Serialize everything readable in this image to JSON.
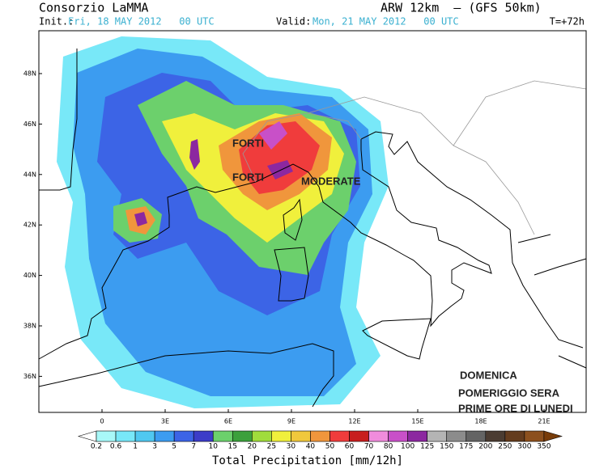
{
  "header": {
    "title": "Consorzio LaMMA",
    "model": "ARW 12km  — (GFS 50km)",
    "init_label": "Init.:",
    "init": "Fri, 18 MAY 2012   00 UTC",
    "valid_label": "Valid:",
    "valid": "Mon, 21 MAY 2012   00 UTC",
    "lead": "T=+72h"
  },
  "map": {
    "lat_labels": [
      "48N",
      "46N",
      "44N",
      "42N",
      "40N",
      "38N",
      "36N"
    ],
    "lon_labels": [
      "0",
      "3E",
      "6E",
      "9E",
      "12E",
      "15E",
      "18E",
      "21E"
    ],
    "annotations": [
      "FORTI",
      "FORTI",
      "MODERATE",
      "DOMENICA",
      "POMERIGGIO SERA",
      "PRIME ORE DI LUNEDI"
    ]
  },
  "colorbar": {
    "title": "Total Precipitation [mm/12h]",
    "levels": [
      0.2,
      0.6,
      1,
      3,
      5,
      7,
      10,
      15,
      20,
      25,
      30,
      40,
      50,
      60,
      70,
      80,
      100,
      125,
      150,
      175,
      200,
      250,
      300,
      350
    ],
    "colors": [
      "#ffffff",
      "#a8f8f8",
      "#78e8f8",
      "#50c8f0",
      "#3c9cf0",
      "#3c64e6",
      "#3c3cc8",
      "#6cd06c",
      "#3ca03c",
      "#a0dc3c",
      "#f0f03c",
      "#f0c83c",
      "#f0963c",
      "#f03c3c",
      "#c81e1e",
      "#f08cdc",
      "#c850c8",
      "#8c28a0",
      "#b4b4b4",
      "#8c8c8c",
      "#646464",
      "#4b3c32",
      "#643c1e",
      "#8c501e",
      "#783c0a"
    ]
  }
}
